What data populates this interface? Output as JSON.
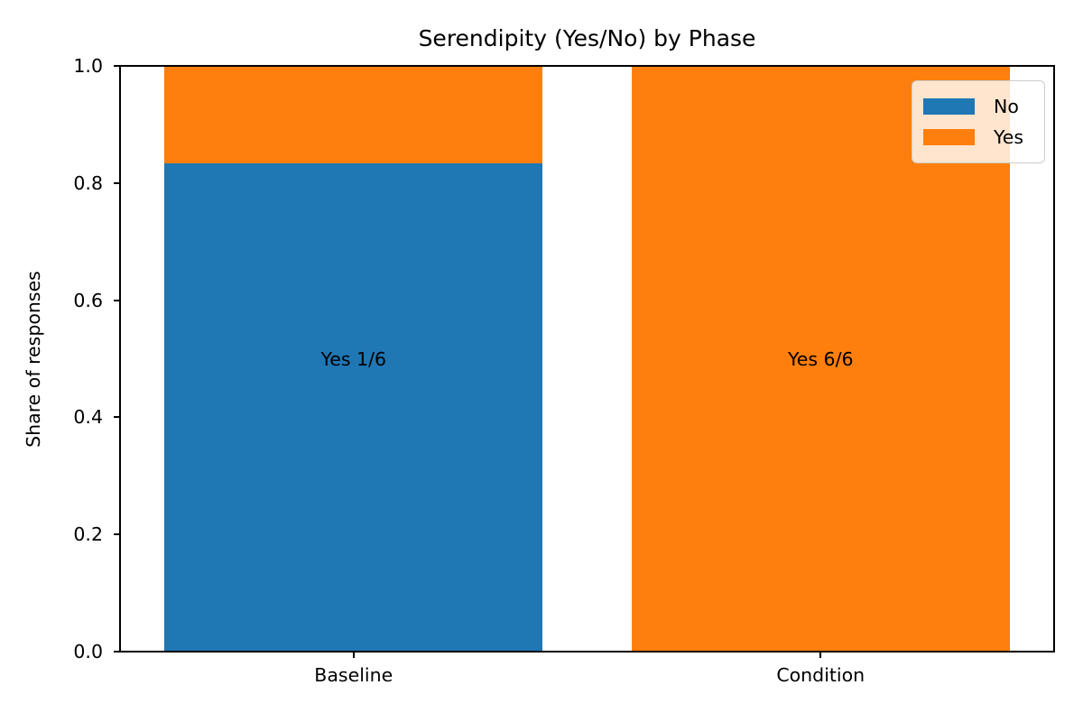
{
  "figure": {
    "background": "#ffffff"
  },
  "chart_data": {
    "type": "bar",
    "stacked": true,
    "title": "Serendipity (Yes/No) by Phase",
    "xlabel": "",
    "ylabel": "Share of responses",
    "categories": [
      "Baseline",
      "Condition"
    ],
    "series": [
      {
        "name": "No",
        "color": "#1f77b4",
        "values": [
          0.8333,
          0
        ]
      },
      {
        "name": "Yes",
        "color": "#ff7f0e",
        "values": [
          0.1667,
          1
        ]
      }
    ],
    "annotations": [
      {
        "text": "Yes 1/6",
        "category_index": 0,
        "y": 0.5,
        "color": "#000000"
      },
      {
        "text": "Yes 6/6",
        "category_index": 1,
        "y": 0.5,
        "color": "#000000"
      }
    ],
    "ylim": [
      0,
      1
    ],
    "yticks": [
      0.0,
      0.2,
      0.4,
      0.6,
      0.8,
      1.0
    ],
    "ytick_labels": [
      "0.0",
      "0.2",
      "0.4",
      "0.6",
      "0.8",
      "1.0"
    ],
    "grid": false,
    "axis_color": "#000000",
    "legend": {
      "position": "upper right",
      "entries": [
        {
          "label": "No",
          "color": "#1f77b4"
        },
        {
          "label": "Yes",
          "color": "#ff7f0e"
        }
      ]
    }
  }
}
